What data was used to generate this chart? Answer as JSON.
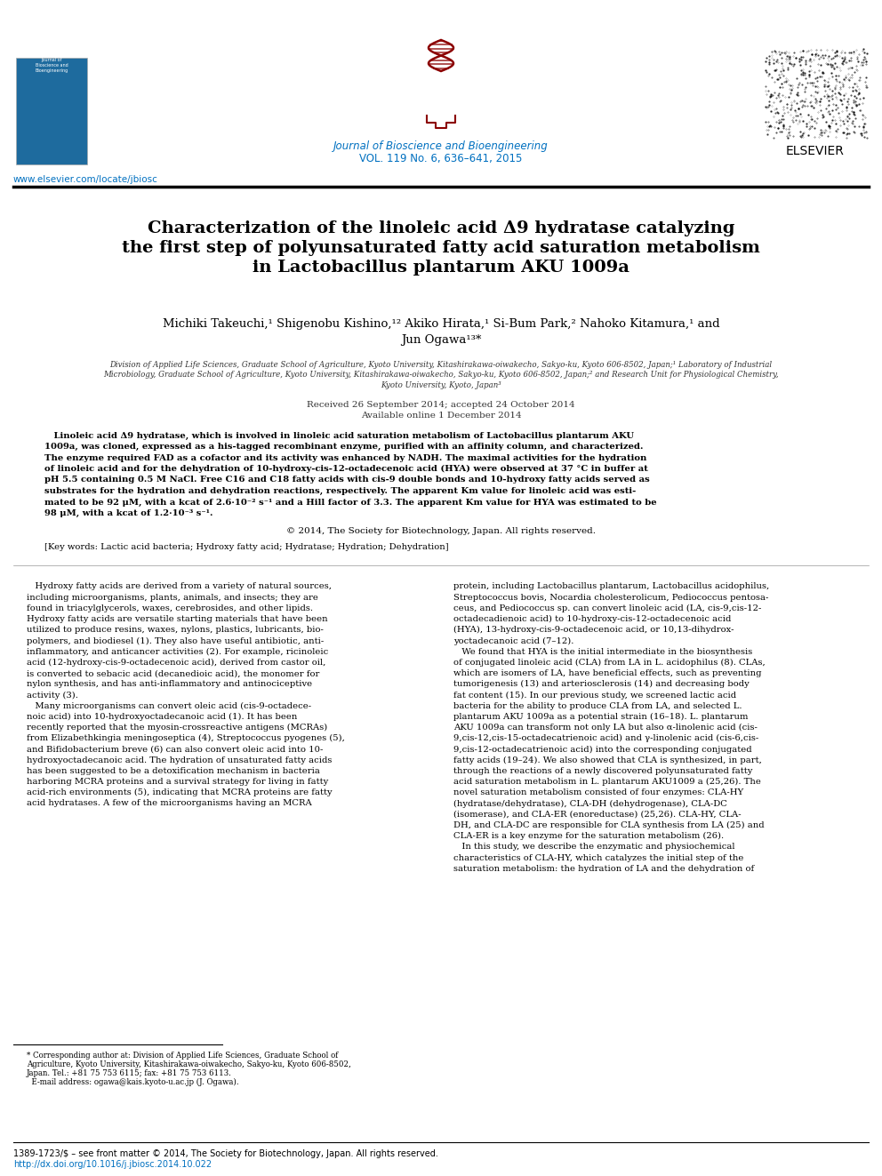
{
  "bg_color": "#ffffff",
  "url_color": "#0070c0",
  "journal_name_color": "#0070c0",
  "title_color": "#000000",
  "author_color": "#000000",
  "abstract_color": "#000000",
  "body_color": "#000000",
  "header_url": "www.elsevier.com/locate/jbiosc",
  "journal_line1": "Journal of Bioscience and Bioengineering",
  "journal_line2": "VOL. 119 No. 6, 636–641, 2015",
  "title_line1": "Characterization of the linoleic acid Δ9 hydratase catalyzing",
  "title_line2": "the first step of polyunsaturated fatty acid saturation metabolism",
  "title_line3_pre": "in ",
  "title_line3_italic": "Lactobacillus plantarum",
  "title_line3_post": " AKU 1009a",
  "authors_line1": "Michiki Takeuchi,¹ Shigenobu Kishino,¹² Akiko Hirata,¹ Si-Bum Park,² Nahoko Kitamura,¹ and",
  "authors_line2": "Jun Ogawa¹³*",
  "affiliation_lines": [
    "Division of Applied Life Sciences, Graduate School of Agriculture, Kyoto University, Kitashirakawa-oiwakecho, Sakyo-ku, Kyoto 606-8502, Japan;¹ Laboratory of Industrial",
    "Microbiology, Graduate School of Agriculture, Kyoto University, Kitashirakawa-oiwakecho, Sakyo-ku, Kyoto 606-8502, Japan;² and Research Unit for Physiological Chemistry,",
    "Kyoto University, Kyoto, Japan³"
  ],
  "received_text": "Received 26 September 2014; accepted 24 October 2014",
  "available_text": "Available online 1 December 2014",
  "abstract_lines": [
    "   Linoleic acid Δ9 hydratase, which is involved in linoleic acid saturation metabolism of Lactobacillus plantarum AKU",
    "1009a, was cloned, expressed as a his-tagged recombinant enzyme, purified with an affinity column, and characterized.",
    "The enzyme required FAD as a cofactor and its activity was enhanced by NADH. The maximal activities for the hydration",
    "of linoleic acid and for the dehydration of 10-hydroxy-cis-12-octadecenoic acid (HYA) were observed at 37 °C in buffer at",
    "pH 5.5 containing 0.5 M NaCl. Free C16 and C18 fatty acids with cis-9 double bonds and 10-hydroxy fatty acids served as",
    "substrates for the hydration and dehydration reactions, respectively. The apparent Km value for linoleic acid was esti-",
    "mated to be 92 μM, with a kcat of 2.6·10⁻² s⁻¹ and a Hill factor of 3.3. The apparent Km value for HYA was estimated to be",
    "98 μM, with a kcat of 1.2·10⁻³ s⁻¹."
  ],
  "copyright_text": "© 2014, The Society for Biotechnology, Japan. All rights reserved.",
  "keywords_text": "[Key words: Lactic acid bacteria; Hydroxy fatty acid; Hydratase; Hydration; Dehydration]",
  "body_left_lines": [
    "   Hydroxy fatty acids are derived from a variety of natural sources,",
    "including microorganisms, plants, animals, and insects; they are",
    "found in triacylglycerols, waxes, cerebrosides, and other lipids.",
    "Hydroxy fatty acids are versatile starting materials that have been",
    "utilized to produce resins, waxes, nylons, plastics, lubricants, bio-",
    "polymers, and biodiesel (1). They also have useful antibiotic, anti-",
    "inflammatory, and anticancer activities (2). For example, ricinoleic",
    "acid (12-hydroxy-cis-9-octadecenoic acid), derived from castor oil,",
    "is converted to sebacic acid (decanedioic acid), the monomer for",
    "nylon synthesis, and has anti-inflammatory and antinociceptive",
    "activity (3).",
    "   Many microorganisms can convert oleic acid (cis-9-octadece-",
    "noic acid) into 10-hydroxyoctadecanoic acid (1). It has been",
    "recently reported that the myosin-crossreactive antigens (MCRAs)",
    "from Elizabethkingia meningoseptica (4), Streptococcus pyogenes (5),",
    "and Bifidobacterium breve (6) can also convert oleic acid into 10-",
    "hydroxyoctadecanoic acid. The hydration of unsaturated fatty acids",
    "has been suggested to be a detoxification mechanism in bacteria",
    "harboring MCRA proteins and a survival strategy for living in fatty",
    "acid-rich environments (5), indicating that MCRA proteins are fatty",
    "acid hydratases. A few of the microorganisms having an MCRA"
  ],
  "body_right_lines": [
    "protein, including Lactobacillus plantarum, Lactobacillus acidophilus,",
    "Streptococcus bovis, Nocardia cholesterolicum, Pediococcus pentosa-",
    "ceus, and Pediococcus sp. can convert linoleic acid (LA, cis-9,cis-12-",
    "octadecadienoic acid) to 10-hydroxy-cis-12-octadecenoic acid",
    "(HYA), 13-hydroxy-cis-9-octadecenoic acid, or 10,13-dihydrox-",
    "yoctadecanoic acid (7–12).",
    "   We found that HYA is the initial intermediate in the biosynthesis",
    "of conjugated linoleic acid (CLA) from LA in L. acidophilus (8). CLAs,",
    "which are isomers of LA, have beneficial effects, such as preventing",
    "tumorigenesis (13) and arteriosclerosis (14) and decreasing body",
    "fat content (15). In our previous study, we screened lactic acid",
    "bacteria for the ability to produce CLA from LA, and selected L.",
    "plantarum AKU 1009a as a potential strain (16–18). L. plantarum",
    "AKU 1009a can transform not only LA but also α-linolenic acid (cis-",
    "9,cis-12,cis-15-octadecatrienoic acid) and γ-linolenic acid (cis-6,cis-",
    "9,cis-12-octadecatrienoic acid) into the corresponding conjugated",
    "fatty acids (19–24). We also showed that CLA is synthesized, in part,",
    "through the reactions of a newly discovered polyunsaturated fatty",
    "acid saturation metabolism in L. plantarum AKU1009 a (25,26). The",
    "novel saturation metabolism consisted of four enzymes: CLA-HY",
    "(hydratase/dehydratase), CLA-DH (dehydrogenase), CLA-DC",
    "(isomerase), and CLA-ER (enoreductase) (25,26). CLA-HY, CLA-",
    "DH, and CLA-DC are responsible for CLA synthesis from LA (25) and",
    "CLA-ER is a key enzyme for the saturation metabolism (26).",
    "   In this study, we describe the enzymatic and physiochemical",
    "characteristics of CLA-HY, which catalyzes the initial step of the",
    "saturation metabolism: the hydration of LA and the dehydration of"
  ],
  "corr_author_lines": [
    "* Corresponding author at: Division of Applied Life Sciences, Graduate School of",
    "Agriculture, Kyoto University, Kitashirakawa-oiwakecho, Sakyo-ku, Kyoto 606-8502,",
    "Japan. Tel.: +81 75 753 6115; fax: +81 75 753 6113.",
    "  E-mail address: ogawa@kais.kyoto-u.ac.jp (J. Ogawa)."
  ],
  "footer_line1": "1389-1723/$ – see front matter © 2014, The Society for Biotechnology, Japan. All rights reserved.",
  "footer_line2": "http://dx.doi.org/10.1016/j.jbiosc.2014.10.022",
  "footer_color": "#000000",
  "footer_url_color": "#0070c0"
}
